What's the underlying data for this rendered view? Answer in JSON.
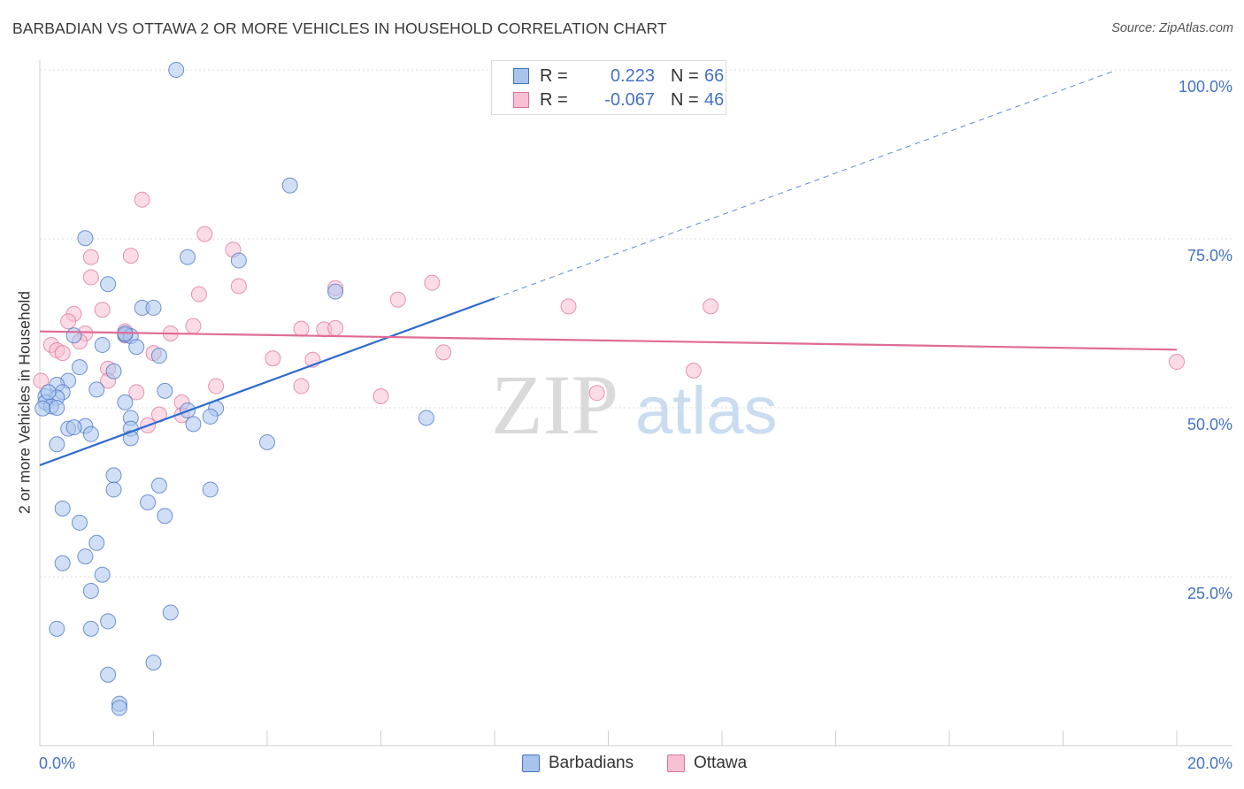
{
  "title": "BARBADIAN VS OTTAWA 2 OR MORE VEHICLES IN HOUSEHOLD CORRELATION CHART",
  "source": "Source: ZipAtlas.com",
  "watermark": {
    "zip": "ZIP",
    "atlas": "atlas"
  },
  "legend": {
    "rows": [
      {
        "name": "Barbadians",
        "r_label": "R =",
        "r_value": "0.223",
        "n_label": "N =",
        "n_value": "66",
        "color": "#4472c4"
      },
      {
        "name": "Ottawa",
        "r_label": "R =",
        "r_value": "-0.067",
        "n_label": "N =",
        "n_value": "46",
        "color": "#e07098"
      }
    ]
  },
  "bottom_legend": [
    "Barbadians",
    "Ottawa"
  ],
  "chart_data": {
    "type": "scatter",
    "title": "BARBADIAN VS OTTAWA 2 OR MORE VEHICLES IN HOUSEHOLD CORRELATION CHART",
    "xlabel": "",
    "ylabel": "2 or more Vehicles in Household",
    "xlim": [
      0,
      20
    ],
    "ylim": [
      0,
      100
    ],
    "x_tick_labels": [
      "0.0%",
      "20.0%"
    ],
    "y_tick_labels": [
      "25.0%",
      "50.0%",
      "75.0%",
      "100.0%"
    ],
    "y_ticks": [
      25,
      50,
      75,
      100
    ],
    "grid": true,
    "series": [
      {
        "name": "Barbadians",
        "color": "#4472c4",
        "fill": "#a9c4ec",
        "trend": {
          "x0": 0,
          "y0": 41.5,
          "x1": 8.0,
          "y1": 66.2,
          "dash_to_x": 18.9
        },
        "points": [
          [
            2.4,
            100.0
          ],
          [
            4.4,
            82.9
          ],
          [
            0.8,
            75.1
          ],
          [
            2.6,
            72.3
          ],
          [
            3.5,
            71.8
          ],
          [
            1.2,
            68.3
          ],
          [
            5.2,
            67.2
          ],
          [
            1.8,
            64.8
          ],
          [
            2.0,
            64.8
          ],
          [
            0.6,
            60.7
          ],
          [
            1.5,
            60.8
          ],
          [
            1.6,
            60.6
          ],
          [
            1.1,
            59.3
          ],
          [
            1.7,
            59.0
          ],
          [
            2.1,
            57.7
          ],
          [
            0.7,
            56.0
          ],
          [
            1.3,
            55.4
          ],
          [
            0.5,
            54.0
          ],
          [
            0.3,
            53.4
          ],
          [
            1.0,
            52.7
          ],
          [
            2.2,
            52.5
          ],
          [
            0.4,
            52.3
          ],
          [
            0.1,
            51.7
          ],
          [
            0.3,
            51.5
          ],
          [
            1.5,
            50.8
          ],
          [
            0.1,
            50.8
          ],
          [
            0.2,
            50.2
          ],
          [
            0.05,
            49.9
          ],
          [
            0.3,
            50.0
          ],
          [
            3.1,
            49.9
          ],
          [
            2.6,
            49.6
          ],
          [
            3.0,
            48.7
          ],
          [
            1.6,
            48.5
          ],
          [
            2.7,
            47.6
          ],
          [
            0.8,
            47.3
          ],
          [
            0.5,
            46.9
          ],
          [
            0.6,
            47.1
          ],
          [
            1.6,
            46.9
          ],
          [
            0.9,
            46.1
          ],
          [
            1.6,
            45.5
          ],
          [
            0.3,
            44.6
          ],
          [
            4.0,
            44.9
          ],
          [
            1.3,
            40.0
          ],
          [
            2.1,
            38.5
          ],
          [
            1.3,
            37.9
          ],
          [
            3.0,
            37.9
          ],
          [
            1.9,
            36.0
          ],
          [
            0.4,
            35.1
          ],
          [
            2.2,
            34.0
          ],
          [
            0.7,
            33.0
          ],
          [
            1.0,
            30.0
          ],
          [
            0.8,
            28.0
          ],
          [
            0.4,
            27.0
          ],
          [
            1.1,
            25.3
          ],
          [
            0.9,
            22.9
          ],
          [
            2.3,
            19.7
          ],
          [
            1.2,
            18.4
          ],
          [
            0.3,
            17.3
          ],
          [
            0.9,
            17.3
          ],
          [
            2.0,
            12.3
          ],
          [
            1.2,
            10.5
          ],
          [
            1.4,
            6.2
          ],
          [
            1.4,
            5.6
          ],
          [
            6.8,
            48.5
          ],
          [
            0.15,
            52.3
          ],
          [
            1.5,
            61.0
          ]
        ]
      },
      {
        "name": "Ottawa",
        "color": "#e07098",
        "fill": "#f7c0d2",
        "trend": {
          "x0": 0,
          "y0": 61.3,
          "x1": 20.0,
          "y1": 58.6
        },
        "points": [
          [
            1.8,
            80.8
          ],
          [
            2.9,
            75.7
          ],
          [
            3.4,
            73.4
          ],
          [
            1.6,
            72.5
          ],
          [
            0.9,
            72.3
          ],
          [
            0.9,
            69.3
          ],
          [
            3.5,
            68.0
          ],
          [
            6.9,
            68.5
          ],
          [
            2.8,
            66.8
          ],
          [
            5.2,
            67.7
          ],
          [
            6.3,
            66.0
          ],
          [
            9.3,
            65.0
          ],
          [
            11.8,
            65.0
          ],
          [
            1.1,
            64.5
          ],
          [
            0.6,
            63.9
          ],
          [
            0.5,
            62.8
          ],
          [
            2.7,
            62.1
          ],
          [
            4.6,
            61.7
          ],
          [
            5.0,
            61.6
          ],
          [
            5.2,
            61.8
          ],
          [
            0.8,
            61.0
          ],
          [
            1.5,
            61.3
          ],
          [
            2.3,
            61.0
          ],
          [
            1.5,
            60.7
          ],
          [
            0.7,
            59.8
          ],
          [
            0.2,
            59.3
          ],
          [
            0.3,
            58.5
          ],
          [
            0.4,
            58.1
          ],
          [
            2.0,
            58.1
          ],
          [
            7.1,
            58.2
          ],
          [
            4.1,
            57.3
          ],
          [
            4.8,
            57.1
          ],
          [
            1.2,
            55.8
          ],
          [
            11.5,
            55.5
          ],
          [
            1.2,
            54.0
          ],
          [
            3.1,
            53.2
          ],
          [
            4.6,
            53.2
          ],
          [
            1.7,
            52.3
          ],
          [
            9.8,
            52.2
          ],
          [
            6.0,
            51.7
          ],
          [
            2.5,
            50.8
          ],
          [
            2.1,
            49.0
          ],
          [
            2.5,
            48.9
          ],
          [
            1.9,
            47.4
          ],
          [
            0.02,
            54.0
          ],
          [
            20.0,
            56.8
          ]
        ]
      }
    ]
  }
}
